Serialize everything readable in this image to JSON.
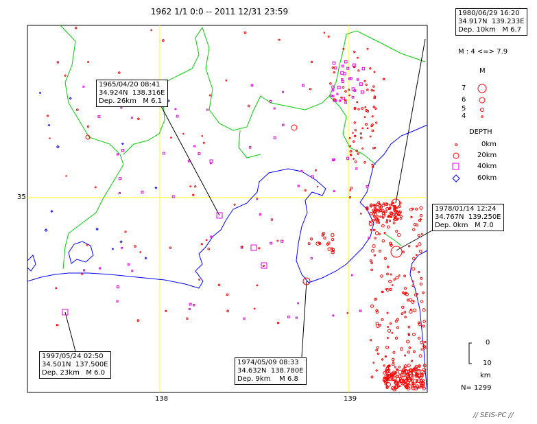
{
  "title": "1962 1/1 0:0 -- 2011 12/31 23:59",
  "axes": {
    "x_ticks": [
      {
        "value": 138,
        "label": "138"
      },
      {
        "value": 139,
        "label": "139"
      }
    ],
    "y_ticks": [
      {
        "value": 35,
        "label": "35"
      }
    ],
    "lon_range": [
      137.3,
      139.4
    ],
    "lat_range": [
      34.0,
      35.9
    ]
  },
  "callouts": [
    {
      "id": "1980",
      "datetime": "1980/06/29 16:20",
      "coords": "34.917N  139.233E",
      "depth_mag": "Dep. 10km   M 6.7",
      "lat": 34.917,
      "lon": 139.233
    },
    {
      "id": "1965",
      "datetime": "1965/04/20 08:41",
      "coords": "34.924N  138.316E",
      "depth_mag": "Dep. 26km   M 6.1",
      "lat": 34.924,
      "lon": 138.316
    },
    {
      "id": "1978",
      "datetime": "1978/01/14 12:24",
      "coords": "34.767N  139.250E",
      "depth_mag": "Dep. 0km   M 7.0",
      "lat": 34.767,
      "lon": 139.25
    },
    {
      "id": "1997",
      "datetime": "1997/05/24 02:50",
      "coords": "34.501N  137.500E",
      "depth_mag": "Dep. 23km   M 6.0",
      "lat": 34.501,
      "lon": 137.5
    },
    {
      "id": "1974",
      "datetime": "1974/05/09 08:33",
      "coords": "34.632N  138.780E",
      "depth_mag": "Dep. 9km    M 6.8",
      "lat": 34.632,
      "lon": 138.78
    }
  ],
  "legend": {
    "mag_range": "M : 4 <=> 7.9",
    "mag_title": "M",
    "mag_labels": [
      "7",
      "6",
      "5",
      "4"
    ],
    "depth_title": "DEPTH",
    "depth_labels": [
      "0km",
      "20km",
      "40km",
      "60km"
    ],
    "depth_colors": [
      "#ff0000",
      "#ff0000",
      "#e000e0",
      "#0000ff"
    ],
    "scale_top": "0",
    "scale_bottom": "10",
    "scale_unit": "km"
  },
  "count": "N= 1299",
  "footer": "// SEIS-PC //",
  "colors": {
    "coast": "#0000ff",
    "prefecture_border": "#00cc00",
    "grid": "#ffff00",
    "shallow": "#ff0000",
    "mid": "#e000e0",
    "deep": "#0000ff"
  }
}
